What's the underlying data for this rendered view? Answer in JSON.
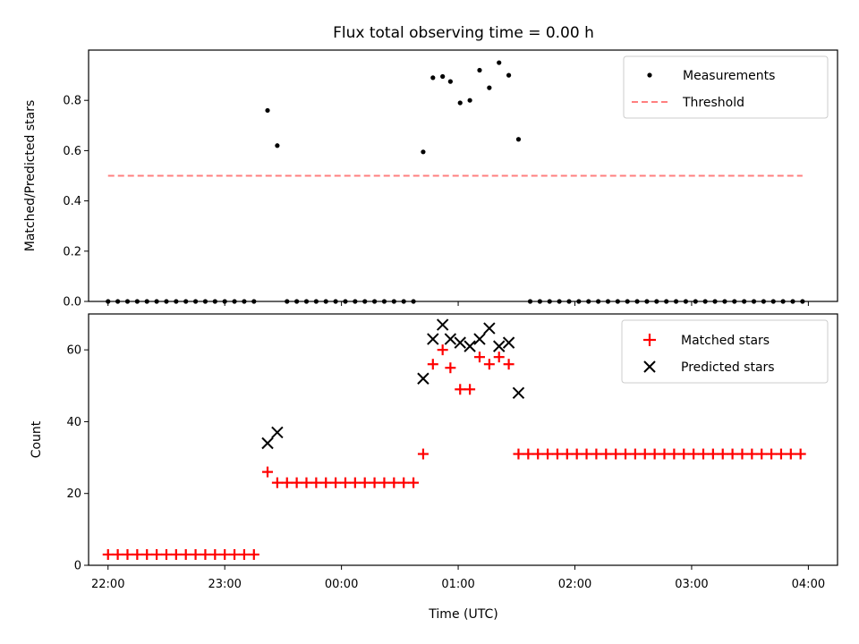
{
  "chart_data": {
    "title": "Flux total observing time = 0.00 h",
    "colors": {
      "measurement": "#000000",
      "threshold": "#ff7f7f",
      "matched": "#ff0000",
      "predicted": "#000000"
    },
    "x_axis": {
      "label": "Time (UTC)",
      "range": [
        "21:50",
        "04:15"
      ],
      "ticks": [
        "22:00",
        "23:00",
        "00:00",
        "01:00",
        "02:00",
        "03:00",
        "04:00"
      ]
    },
    "panels": [
      {
        "type": "scatter",
        "ylabel": "Matched/Predicted stars",
        "ylim": [
          0,
          1.0
        ],
        "yticks": [
          "0.0",
          "0.2",
          "0.4",
          "0.6",
          "0.8"
        ],
        "legend_position": "top-right",
        "series": [
          {
            "name": "Measurements",
            "marker": "dot",
            "points": [
              [
                "22:00",
                0.0
              ],
              [
                "22:05",
                0.0
              ],
              [
                "22:10",
                0.0
              ],
              [
                "22:15",
                0.0
              ],
              [
                "22:20",
                0.0
              ],
              [
                "22:25",
                0.0
              ],
              [
                "22:30",
                0.0
              ],
              [
                "22:35",
                0.0
              ],
              [
                "22:40",
                0.0
              ],
              [
                "22:45",
                0.0
              ],
              [
                "22:50",
                0.0
              ],
              [
                "22:55",
                0.0
              ],
              [
                "23:00",
                0.0
              ],
              [
                "23:05",
                0.0
              ],
              [
                "23:10",
                0.0
              ],
              [
                "23:15",
                0.0
              ],
              [
                "23:22",
                0.76
              ],
              [
                "23:27",
                0.62
              ],
              [
                "23:32",
                0.0
              ],
              [
                "23:37",
                0.0
              ],
              [
                "23:42",
                0.0
              ],
              [
                "23:47",
                0.0
              ],
              [
                "23:52",
                0.0
              ],
              [
                "23:57",
                0.0
              ],
              [
                "00:02",
                0.0
              ],
              [
                "00:07",
                0.0
              ],
              [
                "00:12",
                0.0
              ],
              [
                "00:17",
                0.0
              ],
              [
                "00:22",
                0.0
              ],
              [
                "00:27",
                0.0
              ],
              [
                "00:32",
                0.0
              ],
              [
                "00:37",
                0.0
              ],
              [
                "00:42",
                0.595
              ],
              [
                "00:47",
                0.89
              ],
              [
                "00:52",
                0.895
              ],
              [
                "00:56",
                0.875
              ],
              [
                "01:01",
                0.79
              ],
              [
                "01:06",
                0.8
              ],
              [
                "01:11",
                0.92
              ],
              [
                "01:16",
                0.85
              ],
              [
                "01:21",
                0.95
              ],
              [
                "01:26",
                0.9
              ],
              [
                "01:31",
                0.645
              ],
              [
                "01:37",
                0.0
              ],
              [
                "01:42",
                0.0
              ],
              [
                "01:47",
                0.0
              ],
              [
                "01:52",
                0.0
              ],
              [
                "01:57",
                0.0
              ],
              [
                "02:02",
                0.0
              ],
              [
                "02:07",
                0.0
              ],
              [
                "02:12",
                0.0
              ],
              [
                "02:17",
                0.0
              ],
              [
                "02:22",
                0.0
              ],
              [
                "02:27",
                0.0
              ],
              [
                "02:32",
                0.0
              ],
              [
                "02:37",
                0.0
              ],
              [
                "02:42",
                0.0
              ],
              [
                "02:47",
                0.0
              ],
              [
                "02:52",
                0.0
              ],
              [
                "02:57",
                0.0
              ],
              [
                "03:02",
                0.0
              ],
              [
                "03:07",
                0.0
              ],
              [
                "03:12",
                0.0
              ],
              [
                "03:17",
                0.0
              ],
              [
                "03:22",
                0.0
              ],
              [
                "03:27",
                0.0
              ],
              [
                "03:32",
                0.0
              ],
              [
                "03:37",
                0.0
              ],
              [
                "03:42",
                0.0
              ],
              [
                "03:47",
                0.0
              ],
              [
                "03:52",
                0.0
              ],
              [
                "03:57",
                0.0
              ]
            ]
          },
          {
            "name": "Threshold",
            "marker": "dashed-line",
            "points": [
              [
                "22:00",
                0.5
              ],
              [
                "03:57",
                0.5
              ]
            ]
          }
        ]
      },
      {
        "type": "scatter",
        "ylabel": "Count",
        "ylim": [
          0,
          70
        ],
        "yticks": [
          "0",
          "20",
          "40",
          "60"
        ],
        "legend_position": "top-right",
        "series": [
          {
            "name": "Matched stars",
            "marker": "plus",
            "points": [
              [
                "22:00",
                3
              ],
              [
                "22:05",
                3
              ],
              [
                "22:10",
                3
              ],
              [
                "22:15",
                3
              ],
              [
                "22:20",
                3
              ],
              [
                "22:25",
                3
              ],
              [
                "22:30",
                3
              ],
              [
                "22:35",
                3
              ],
              [
                "22:40",
                3
              ],
              [
                "22:45",
                3
              ],
              [
                "22:50",
                3
              ],
              [
                "22:55",
                3
              ],
              [
                "23:00",
                3
              ],
              [
                "23:05",
                3
              ],
              [
                "23:10",
                3
              ],
              [
                "23:15",
                3
              ],
              [
                "23:22",
                26
              ],
              [
                "23:27",
                23
              ],
              [
                "23:32",
                23
              ],
              [
                "23:37",
                23
              ],
              [
                "23:42",
                23
              ],
              [
                "23:47",
                23
              ],
              [
                "23:52",
                23
              ],
              [
                "23:57",
                23
              ],
              [
                "00:02",
                23
              ],
              [
                "00:07",
                23
              ],
              [
                "00:12",
                23
              ],
              [
                "00:17",
                23
              ],
              [
                "00:22",
                23
              ],
              [
                "00:27",
                23
              ],
              [
                "00:32",
                23
              ],
              [
                "00:37",
                23
              ],
              [
                "00:42",
                31
              ],
              [
                "00:47",
                56
              ],
              [
                "00:52",
                60
              ],
              [
                "00:56",
                55
              ],
              [
                "01:01",
                49
              ],
              [
                "01:06",
                49
              ],
              [
                "01:11",
                58
              ],
              [
                "01:16",
                56
              ],
              [
                "01:21",
                58
              ],
              [
                "01:26",
                56
              ],
              [
                "01:31",
                31
              ],
              [
                "01:36",
                31
              ],
              [
                "01:41",
                31
              ],
              [
                "01:46",
                31
              ],
              [
                "01:51",
                31
              ],
              [
                "01:56",
                31
              ],
              [
                "02:01",
                31
              ],
              [
                "02:06",
                31
              ],
              [
                "02:11",
                31
              ],
              [
                "02:16",
                31
              ],
              [
                "02:21",
                31
              ],
              [
                "02:26",
                31
              ],
              [
                "02:31",
                31
              ],
              [
                "02:36",
                31
              ],
              [
                "02:41",
                31
              ],
              [
                "02:46",
                31
              ],
              [
                "02:51",
                31
              ],
              [
                "02:56",
                31
              ],
              [
                "03:01",
                31
              ],
              [
                "03:06",
                31
              ],
              [
                "03:11",
                31
              ],
              [
                "03:16",
                31
              ],
              [
                "03:21",
                31
              ],
              [
                "03:26",
                31
              ],
              [
                "03:31",
                31
              ],
              [
                "03:36",
                31
              ],
              [
                "03:41",
                31
              ],
              [
                "03:46",
                31
              ],
              [
                "03:51",
                31
              ],
              [
                "03:56",
                31
              ]
            ]
          },
          {
            "name": "Predicted stars",
            "marker": "x",
            "points": [
              [
                "23:22",
                34
              ],
              [
                "23:27",
                37
              ],
              [
                "00:42",
                52
              ],
              [
                "00:47",
                63
              ],
              [
                "00:52",
                67
              ],
              [
                "00:56",
                63
              ],
              [
                "01:01",
                62
              ],
              [
                "01:06",
                61
              ],
              [
                "01:11",
                63
              ],
              [
                "01:16",
                66
              ],
              [
                "01:21",
                61
              ],
              [
                "01:26",
                62
              ],
              [
                "01:31",
                48
              ]
            ]
          }
        ]
      }
    ]
  }
}
